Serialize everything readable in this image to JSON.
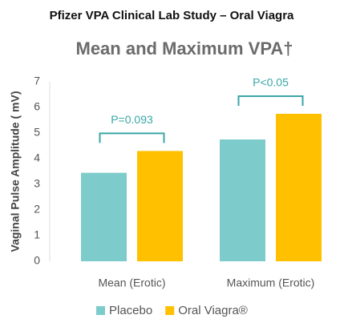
{
  "chart_data": {
    "type": "bar",
    "title": "Pfizer VPA Clinical Lab Study – Oral Viagra",
    "subtitle": "Mean and Maximum VPA†",
    "y_label": "Vaginal Pulse Amplitude ( mV)",
    "categories": [
      "Mean (Erotic)",
      "Maximum (Erotic)"
    ],
    "series": [
      {
        "name": "Placebo",
        "color": "#7dcccb",
        "values": [
          3.45,
          4.75
        ]
      },
      {
        "name": "Oral Viagra®",
        "color": "#ffc000",
        "values": [
          4.3,
          5.75
        ]
      }
    ],
    "ylim": [
      0,
      7
    ],
    "yticks": [
      0,
      1,
      2,
      3,
      4,
      5,
      6,
      7
    ],
    "annotations": [
      "P=0.093",
      "P<0.05"
    ],
    "legend": "bottom",
    "grid": false
  }
}
